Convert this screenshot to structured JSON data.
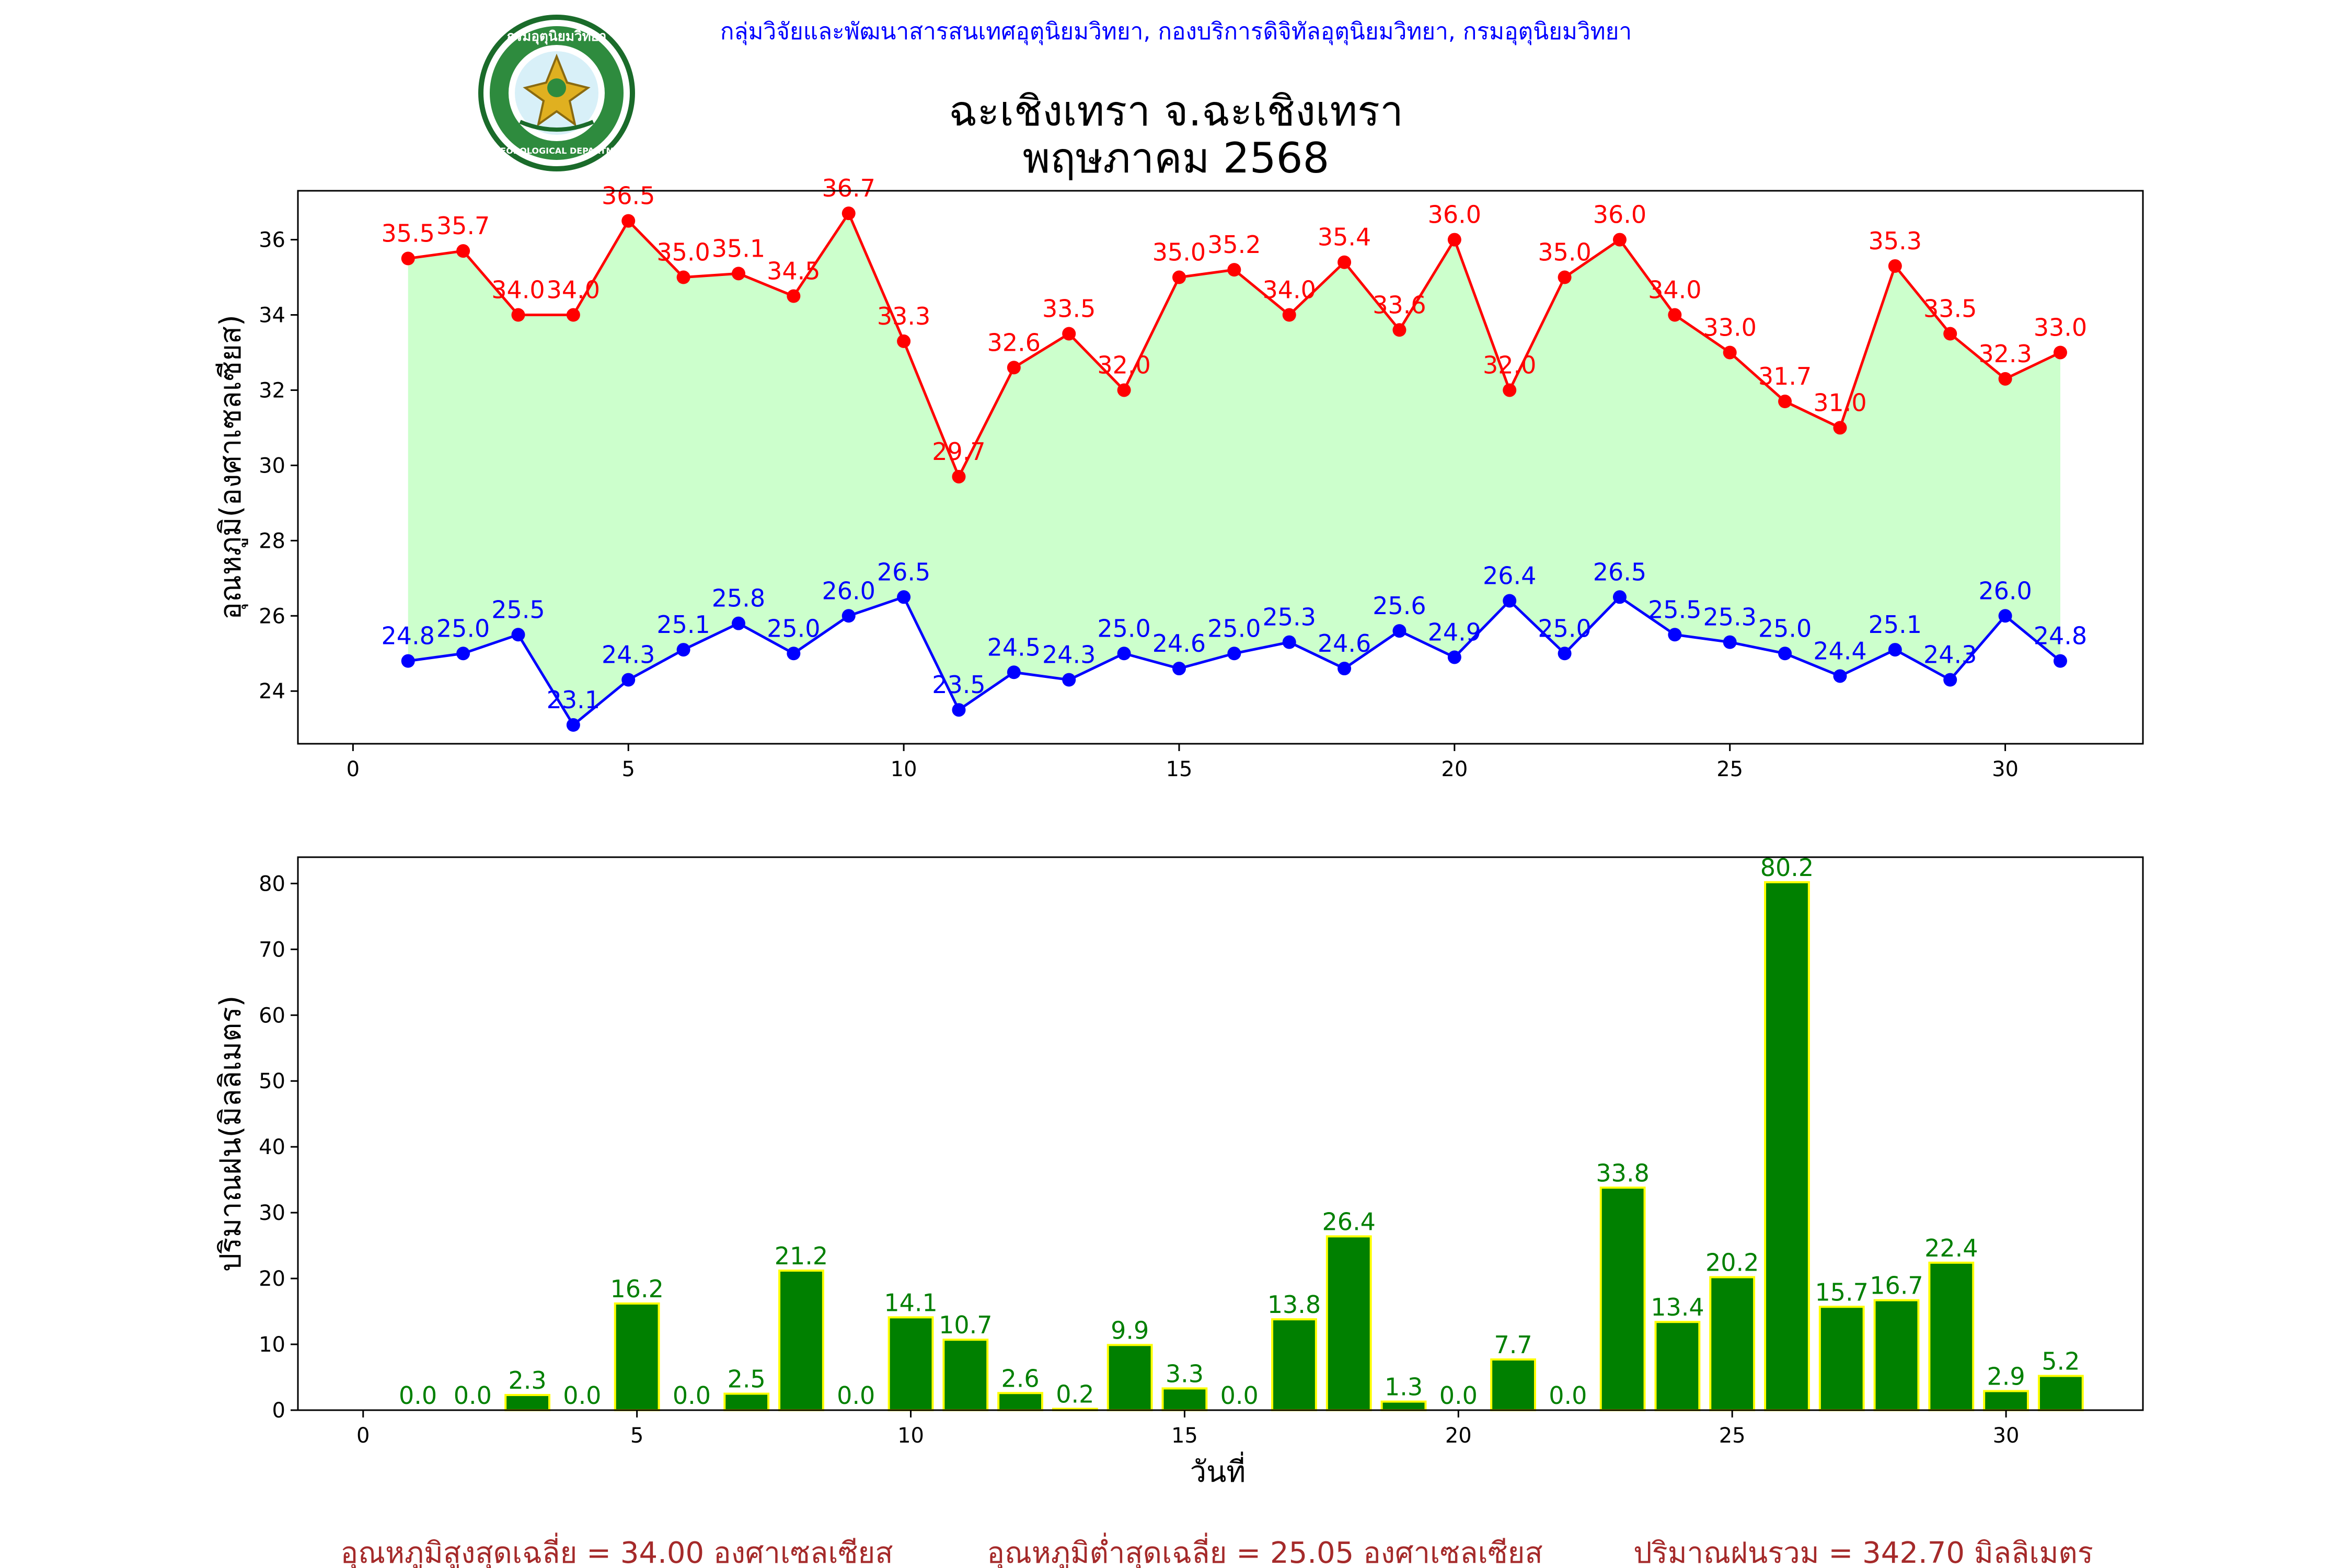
{
  "header": {
    "agency": "กลุ่มวิจัยและพัฒนาสารสนเทศอุตุนิยมวิทยา, กองบริการดิจิทัลอุตุนิยมวิทยา, กรมอุตุนิยมวิทยา",
    "title_line1": "ฉะเชิงเทรา จ.ฉะเชิงเทรา",
    "title_line2": "พฤษภาคม 2568"
  },
  "logo": {
    "text_top": "กรมอุตุนิยมวิทยา",
    "text_bottom": "METEOROLOGICAL DEPARTMENT"
  },
  "colors": {
    "tmax": "#ff0000",
    "tmin": "#0000ff",
    "fill": "#ccffcc",
    "rain_bar": "#008000",
    "rain_edge": "#ffff00",
    "rain_label": "#008000",
    "summary": "#a52a2a",
    "agency": "#0000ff"
  },
  "chart_data": [
    {
      "type": "line",
      "ylabel": "อุณหภูมิ(องศาเซลเซียส)",
      "xlim": [
        -1,
        32.5
      ],
      "ylim": [
        22.6,
        37.3
      ],
      "xticks": [
        0,
        5,
        10,
        15,
        20,
        25,
        30
      ],
      "yticks": [
        24,
        26,
        28,
        30,
        32,
        34,
        36
      ],
      "x": [
        1,
        2,
        3,
        4,
        5,
        6,
        7,
        8,
        9,
        10,
        11,
        12,
        13,
        14,
        15,
        16,
        17,
        18,
        19,
        20,
        21,
        22,
        23,
        24,
        25,
        26,
        27,
        28,
        29,
        30,
        31
      ],
      "series": [
        {
          "key": "tmax",
          "values": [
            35.5,
            35.7,
            34.0,
            34.0,
            36.5,
            35.0,
            35.1,
            34.5,
            36.7,
            33.3,
            29.7,
            32.6,
            33.5,
            32.0,
            35.0,
            35.2,
            34.0,
            35.4,
            33.6,
            36.0,
            32.0,
            35.0,
            36.0,
            34.0,
            33.0,
            31.7,
            31.0,
            35.3,
            33.5,
            32.3,
            33.0
          ]
        },
        {
          "key": "tmin",
          "values": [
            24.8,
            25.0,
            25.5,
            23.1,
            24.3,
            25.1,
            25.8,
            25.0,
            26.0,
            26.5,
            23.5,
            24.5,
            24.3,
            25.0,
            24.6,
            25.0,
            25.3,
            24.6,
            25.6,
            24.9,
            26.4,
            25.0,
            26.5,
            25.5,
            25.3,
            25.0,
            24.4,
            25.1,
            24.3,
            26.0,
            24.8
          ]
        }
      ]
    },
    {
      "type": "bar",
      "xlabel": "วันที่",
      "ylabel": "ปริมาณฝน(มิลลิเมตร)",
      "xlim": [
        -1,
        32.5
      ],
      "ylim": [
        0,
        84
      ],
      "xticks": [
        0,
        5,
        10,
        15,
        20,
        25,
        30
      ],
      "yticks": [
        0,
        10,
        20,
        30,
        40,
        50,
        60,
        70,
        80
      ],
      "categories": [
        1,
        2,
        3,
        4,
        5,
        6,
        7,
        8,
        9,
        10,
        11,
        12,
        13,
        14,
        15,
        16,
        17,
        18,
        19,
        20,
        21,
        22,
        23,
        24,
        25,
        26,
        27,
        28,
        29,
        30,
        31
      ],
      "values": [
        0.0,
        0.0,
        2.3,
        0.0,
        16.2,
        0.0,
        2.5,
        21.2,
        0.0,
        14.1,
        10.7,
        2.6,
        0.2,
        9.9,
        3.3,
        0.0,
        13.8,
        26.4,
        1.3,
        0.0,
        7.7,
        0.0,
        33.8,
        13.4,
        20.2,
        80.2,
        15.7,
        16.7,
        22.4,
        2.9,
        5.2
      ]
    }
  ],
  "summary": {
    "tmax_avg": "อุณหภูมิสูงสุดเฉลี่ย = 34.00 องศาเซลเซียส",
    "tmin_avg": "อุณหภูมิต่ำสุดเฉลี่ย = 25.05 องศาเซลเซียส",
    "rain_total": "ปริมาณฝนรวม = 342.70 มิลลิเมตร"
  }
}
